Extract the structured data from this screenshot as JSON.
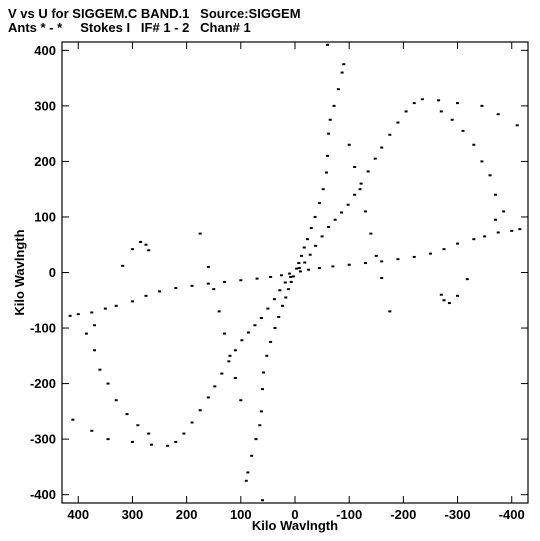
{
  "header": {
    "title": "V vs U for SIGGEM.C BAND.1   Source:SIGGEM",
    "subtitle": "Ants * - *     Stokes I   IF# 1 - 2   Chan# 1"
  },
  "chart_data": {
    "type": "scatter",
    "title": "V vs U for SIGGEM.C BAND.1   Source:SIGGEM",
    "subtitle": "Ants * - *     Stokes I   IF# 1 - 2   Chan# 1",
    "xlabel": "Kilo Wavlngth",
    "ylabel": "Kilo Wavlngth",
    "xlim": [
      430,
      -430
    ],
    "ylim": [
      -415,
      415
    ],
    "xticks": [
      400,
      300,
      200,
      100,
      0,
      -100,
      -200,
      -300,
      -400
    ],
    "yticks": [
      400,
      300,
      200,
      100,
      0,
      -100,
      -200,
      -300,
      -400
    ],
    "xtick_labels": [
      "400",
      "300",
      "200",
      "100",
      "0",
      "-100",
      "-200",
      "-300",
      "-400"
    ],
    "ytick_labels": [
      "400",
      "300",
      "200",
      "100",
      "0",
      "-100",
      "-200",
      "-300",
      "-400"
    ],
    "marker_color": "#000000",
    "grid": false,
    "series": [
      {
        "values": [
          [
            -3,
            7
          ],
          [
            -7,
            17
          ],
          [
            -12,
            30
          ],
          [
            -17,
            45
          ],
          [
            -23,
            60
          ],
          [
            -30,
            80
          ],
          [
            -37,
            100
          ],
          [
            -45,
            125
          ],
          [
            -52,
            150
          ],
          [
            -58,
            180
          ],
          [
            -60,
            210
          ],
          [
            -62,
            250
          ],
          [
            -65,
            275
          ],
          [
            -72,
            300
          ],
          [
            -80,
            330
          ],
          [
            -87,
            360
          ],
          [
            -90,
            375
          ],
          [
            -60,
            410
          ],
          [
            3,
            -7
          ],
          [
            7,
            -17
          ],
          [
            12,
            -30
          ],
          [
            17,
            -45
          ],
          [
            23,
            -60
          ],
          [
            30,
            -80
          ],
          [
            37,
            -100
          ],
          [
            45,
            -125
          ],
          [
            52,
            -150
          ],
          [
            58,
            -180
          ],
          [
            60,
            -210
          ],
          [
            62,
            -250
          ],
          [
            65,
            -275
          ],
          [
            72,
            -300
          ],
          [
            80,
            -330
          ],
          [
            87,
            -360
          ],
          [
            90,
            -375
          ],
          [
            60,
            -410
          ],
          [
            -10,
            2
          ],
          [
            -25,
            5
          ],
          [
            -45,
            8
          ],
          [
            -70,
            11
          ],
          [
            -100,
            14
          ],
          [
            -130,
            17
          ],
          [
            -160,
            20
          ],
          [
            -190,
            24
          ],
          [
            -220,
            28
          ],
          [
            -250,
            34
          ],
          [
            -275,
            42
          ],
          [
            -300,
            52
          ],
          [
            -330,
            60
          ],
          [
            -350,
            65
          ],
          [
            -375,
            72
          ],
          [
            -400,
            75
          ],
          [
            -415,
            78
          ],
          [
            10,
            -2
          ],
          [
            25,
            -5
          ],
          [
            45,
            -8
          ],
          [
            70,
            -11
          ],
          [
            100,
            -14
          ],
          [
            130,
            -17
          ],
          [
            160,
            -20
          ],
          [
            190,
            -24
          ],
          [
            220,
            -28
          ],
          [
            250,
            -34
          ],
          [
            275,
            -42
          ],
          [
            300,
            -52
          ],
          [
            330,
            -60
          ],
          [
            350,
            -65
          ],
          [
            375,
            -72
          ],
          [
            400,
            -75
          ],
          [
            415,
            -78
          ],
          [
            8,
            -8
          ],
          [
            18,
            -18
          ],
          [
            28,
            -32
          ],
          [
            38,
            -48
          ],
          [
            50,
            -65
          ],
          [
            62,
            -82
          ],
          [
            74,
            -95
          ],
          [
            86,
            -108
          ],
          [
            98,
            -122
          ],
          [
            110,
            -140
          ],
          [
            122,
            -160
          ],
          [
            135,
            -182
          ],
          [
            148,
            -205
          ],
          [
            160,
            -225
          ],
          [
            175,
            -248
          ],
          [
            190,
            -270
          ],
          [
            205,
            -290
          ],
          [
            220,
            -305
          ],
          [
            235,
            -312
          ],
          [
            265,
            -310
          ],
          [
            300,
            -305
          ],
          [
            345,
            -300
          ],
          [
            375,
            -285
          ],
          [
            410,
            -265
          ],
          [
            -8,
            8
          ],
          [
            -18,
            18
          ],
          [
            -28,
            32
          ],
          [
            -38,
            48
          ],
          [
            -50,
            65
          ],
          [
            -62,
            82
          ],
          [
            -74,
            95
          ],
          [
            -86,
            108
          ],
          [
            -98,
            122
          ],
          [
            -110,
            140
          ],
          [
            -122,
            160
          ],
          [
            -135,
            182
          ],
          [
            -148,
            205
          ],
          [
            -160,
            225
          ],
          [
            -175,
            248
          ],
          [
            -190,
            270
          ],
          [
            -205,
            290
          ],
          [
            -220,
            305
          ],
          [
            -235,
            312
          ],
          [
            -265,
            310
          ],
          [
            -300,
            305
          ],
          [
            -345,
            300
          ],
          [
            -375,
            285
          ],
          [
            -410,
            265
          ],
          [
            -370,
            95
          ],
          [
            -385,
            110
          ],
          [
            -370,
            140
          ],
          [
            -360,
            175
          ],
          [
            -345,
            200
          ],
          [
            -330,
            230
          ],
          [
            -310,
            255
          ],
          [
            -290,
            275
          ],
          [
            -270,
            290
          ],
          [
            370,
            -95
          ],
          [
            385,
            -110
          ],
          [
            370,
            -140
          ],
          [
            360,
            -175
          ],
          [
            345,
            -200
          ],
          [
            330,
            -230
          ],
          [
            310,
            -255
          ],
          [
            290,
            -275
          ],
          [
            270,
            -290
          ],
          [
            270,
            40
          ],
          [
            275,
            50
          ],
          [
            285,
            55
          ],
          [
            300,
            42
          ],
          [
            318,
            12
          ],
          [
            -270,
            -40
          ],
          [
            -275,
            -50
          ],
          [
            -285,
            -55
          ],
          [
            -300,
            -42
          ],
          [
            -318,
            -12
          ],
          [
            175,
            70
          ],
          [
            160,
            10
          ],
          [
            150,
            -30
          ],
          [
            140,
            -70
          ],
          [
            130,
            -110
          ],
          [
            120,
            -150
          ],
          [
            110,
            -190
          ],
          [
            100,
            -230
          ],
          [
            -175,
            -70
          ],
          [
            -160,
            -10
          ],
          [
            -150,
            30
          ],
          [
            -140,
            70
          ],
          [
            -130,
            110
          ],
          [
            -120,
            150
          ],
          [
            -110,
            190
          ],
          [
            -100,
            230
          ]
        ]
      }
    ]
  }
}
